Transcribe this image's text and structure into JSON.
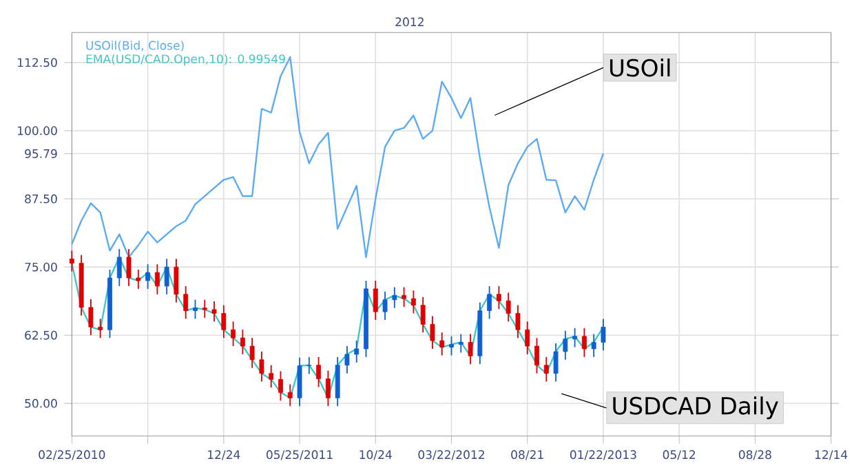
{
  "chart_data": {
    "type": "line",
    "categories": [
      "02/25/2010",
      null,
      null,
      null,
      null,
      null,
      null,
      null,
      null,
      null,
      null,
      null,
      null,
      null,
      null,
      null,
      "12/24",
      null,
      null,
      null,
      null,
      null,
      null,
      null,
      "05/25/2011",
      null,
      null,
      null,
      null,
      null,
      null,
      null,
      "10/24",
      null,
      null,
      null,
      null,
      null,
      null,
      null,
      "03/22/2012",
      null,
      null,
      null,
      null,
      null,
      null,
      null,
      "08/21",
      null,
      null,
      null,
      null,
      null,
      null,
      null,
      "01/22/2013",
      null,
      null,
      null,
      null,
      null,
      null,
      null,
      "05/12",
      null,
      null,
      null,
      null,
      null,
      null,
      null,
      "08/28",
      null,
      null,
      null,
      null,
      null,
      null,
      null,
      "12/14"
    ],
    "ylim": [
      44,
      118
    ],
    "yticks": [
      {
        "value": 50,
        "label": "50.00"
      },
      {
        "value": 62.5,
        "label": "62.50"
      },
      {
        "value": 75,
        "label": "75.00"
      },
      {
        "value": 87.5,
        "label": "87.50"
      },
      {
        "value": 95.79,
        "label": "95.79"
      },
      {
        "value": 100,
        "label": "100.00"
      },
      {
        "value": 112.5,
        "label": "112.50"
      }
    ],
    "grid": true,
    "legend": "top left",
    "series": [
      {
        "name": "USOil(Bid, Close)",
        "color": "#5aaaf5",
        "values": [
          79.2,
          83.5,
          86.7,
          85,
          78,
          81,
          76.8,
          79,
          81.5,
          79.5,
          81,
          82.5,
          83.5,
          86.5,
          88,
          89.5,
          91,
          91.5,
          88,
          88,
          104,
          103.3,
          110,
          113.5,
          99.8,
          94,
          97.5,
          99.6,
          82,
          86,
          89.9,
          76.8,
          87.5,
          97,
          100,
          100.5,
          102.8,
          98.5,
          100,
          109,
          106,
          102.3,
          106,
          95,
          86,
          78.5,
          90,
          94,
          97,
          98.5,
          91,
          90.9,
          85,
          88,
          85.5,
          91,
          95.8,
          null,
          null,
          null,
          null,
          null,
          null,
          null,
          null,
          null,
          null,
          null,
          null,
          null,
          null,
          null,
          null,
          null,
          null,
          null,
          null,
          null,
          null,
          null,
          null
        ]
      },
      {
        "name": "EMA(USD/CAD.Open,10): 0.99549",
        "color": "#3cc8c8",
        "values": [
          75.7,
          67.6,
          64,
          63.5,
          73,
          76.8,
          73,
          72.5,
          74,
          71.5,
          75,
          70,
          67,
          67.5,
          67.2,
          66.5,
          63.5,
          62,
          60.5,
          58,
          55.5,
          54.4,
          52,
          51,
          56.9,
          57,
          54.5,
          51,
          57,
          59,
          60,
          71,
          66.8,
          69,
          69.8,
          69.2,
          68,
          64.5,
          61.5,
          60.3,
          60.8,
          61.2,
          58.7,
          67,
          70,
          68.8,
          66.5,
          63.5,
          60.5,
          57,
          55.5,
          59.5,
          61.8,
          62.3,
          60,
          61.2,
          64,
          null,
          null,
          null,
          null,
          null,
          null,
          null,
          null,
          null,
          null,
          null,
          null,
          null,
          null,
          null,
          null,
          null,
          null,
          null,
          null,
          null,
          null,
          null,
          null
        ]
      },
      {
        "type": "candlestick",
        "ohlc": [
          [
            76.5,
            78,
            74.2,
            75.7
          ],
          [
            75.7,
            77.2,
            66.1,
            67.6
          ],
          [
            67.6,
            69.1,
            62.5,
            64
          ],
          [
            64,
            65.5,
            62,
            63.5
          ],
          [
            63.5,
            74.5,
            62,
            73
          ],
          [
            73,
            78.3,
            71.5,
            76.8
          ],
          [
            76.8,
            78.3,
            71.5,
            73
          ],
          [
            73,
            74.5,
            71,
            72.5
          ],
          [
            72.5,
            75.5,
            71,
            74
          ],
          [
            74,
            75.5,
            70,
            71.5
          ],
          [
            71.5,
            76.5,
            70,
            75
          ],
          [
            75,
            76.5,
            68.5,
            70
          ],
          [
            70,
            71.5,
            65.5,
            67
          ],
          [
            67,
            69,
            65.5,
            67.5
          ],
          [
            67.5,
            69,
            65.7,
            67.2
          ],
          [
            67.2,
            68.7,
            65,
            66.5
          ],
          [
            66.5,
            68,
            62,
            63.5
          ],
          [
            63.5,
            65,
            60.5,
            62
          ],
          [
            62,
            63.5,
            59,
            60.5
          ],
          [
            60.5,
            62,
            56.5,
            58
          ],
          [
            58,
            59.5,
            54,
            55.5
          ],
          [
            55.5,
            57,
            52.9,
            54.4
          ],
          [
            54.4,
            55.9,
            50.5,
            52
          ],
          [
            52,
            53.5,
            49.5,
            51
          ],
          [
            51,
            58.4,
            49.5,
            56.9
          ],
          [
            56.9,
            58.5,
            55.4,
            57
          ],
          [
            57,
            58.5,
            53,
            54.5
          ],
          [
            54.5,
            56,
            49.5,
            51
          ],
          [
            51,
            58.5,
            49.5,
            57
          ],
          [
            57,
            60.5,
            55.5,
            59
          ],
          [
            59,
            61.5,
            57.5,
            60
          ],
          [
            60,
            72.5,
            58.5,
            71
          ],
          [
            71,
            72.5,
            65.3,
            66.8
          ],
          [
            66.8,
            70.5,
            65.3,
            69
          ],
          [
            69,
            71.3,
            67.5,
            69.8
          ],
          [
            69.8,
            71.3,
            67.7,
            69.2
          ],
          [
            69.2,
            70.7,
            66.5,
            68
          ],
          [
            68,
            69.5,
            63,
            64.5
          ],
          [
            64.5,
            66,
            60,
            61.5
          ],
          [
            61.5,
            63,
            58.8,
            60.3
          ],
          [
            60.3,
            62.3,
            58.8,
            60.8
          ],
          [
            60.8,
            62.7,
            59.3,
            61.2
          ],
          [
            61.2,
            62.7,
            57.2,
            58.7
          ],
          [
            58.7,
            68.5,
            57.2,
            67
          ],
          [
            67,
            71.5,
            65.5,
            70
          ],
          [
            70,
            71.5,
            67.3,
            68.8
          ],
          [
            68.8,
            70.3,
            65,
            66.5
          ],
          [
            66.5,
            68,
            62,
            63.5
          ],
          [
            63.5,
            65,
            59,
            60.5
          ],
          [
            60.5,
            62,
            55.5,
            57
          ],
          [
            57,
            58.5,
            54,
            55.5
          ],
          [
            55.5,
            61,
            54,
            59.5
          ],
          [
            59.5,
            63.3,
            58,
            61.8
          ],
          [
            61.8,
            63.8,
            60.3,
            62.3
          ],
          [
            62.3,
            63.8,
            58.5,
            60
          ],
          [
            60,
            62.7,
            58.5,
            61.2
          ],
          [
            61.2,
            65.5,
            59.7,
            64
          ],
          null,
          null,
          null,
          null,
          null,
          null,
          null,
          null,
          null,
          null,
          null,
          null,
          null,
          null,
          null,
          null,
          null,
          null,
          null,
          null,
          null,
          null,
          null,
          null
        ],
        "colors": [
          "#e00000",
          "#e00000",
          "#e00000",
          "#e00000",
          "#1060d0",
          "#1060d0",
          "#e00000",
          "#e00000",
          "#1060d0",
          "#e00000",
          "#1060d0",
          "#e00000",
          "#e00000",
          "#1060d0",
          "#e00000",
          "#e00000",
          "#e00000",
          "#e00000",
          "#e00000",
          "#e00000",
          "#e00000",
          "#e00000",
          "#e00000",
          "#e00000",
          "#1060d0",
          "#1060d0",
          "#e00000",
          "#e00000",
          "#1060d0",
          "#1060d0",
          "#1060d0",
          "#1060d0",
          "#e00000",
          "#1060d0",
          "#1060d0",
          "#e00000",
          "#e00000",
          "#e00000",
          "#e00000",
          "#e00000",
          "#1060d0",
          "#1060d0",
          "#e00000",
          "#1060d0",
          "#1060d0",
          "#e00000",
          "#e00000",
          "#e00000",
          "#e00000",
          "#e00000",
          "#e00000",
          "#1060d0",
          "#1060d0",
          "#1060d0",
          "#e00000",
          "#1060d0",
          "#1060d0",
          null,
          null,
          null,
          null,
          null,
          null,
          null,
          null,
          null,
          null,
          null,
          null,
          null,
          null,
          null,
          null,
          null,
          null,
          null,
          null,
          null,
          null,
          null,
          null
        ]
      }
    ],
    "annotations": [
      "2012",
      "USOil",
      "USDCAD Daily"
    ]
  }
}
